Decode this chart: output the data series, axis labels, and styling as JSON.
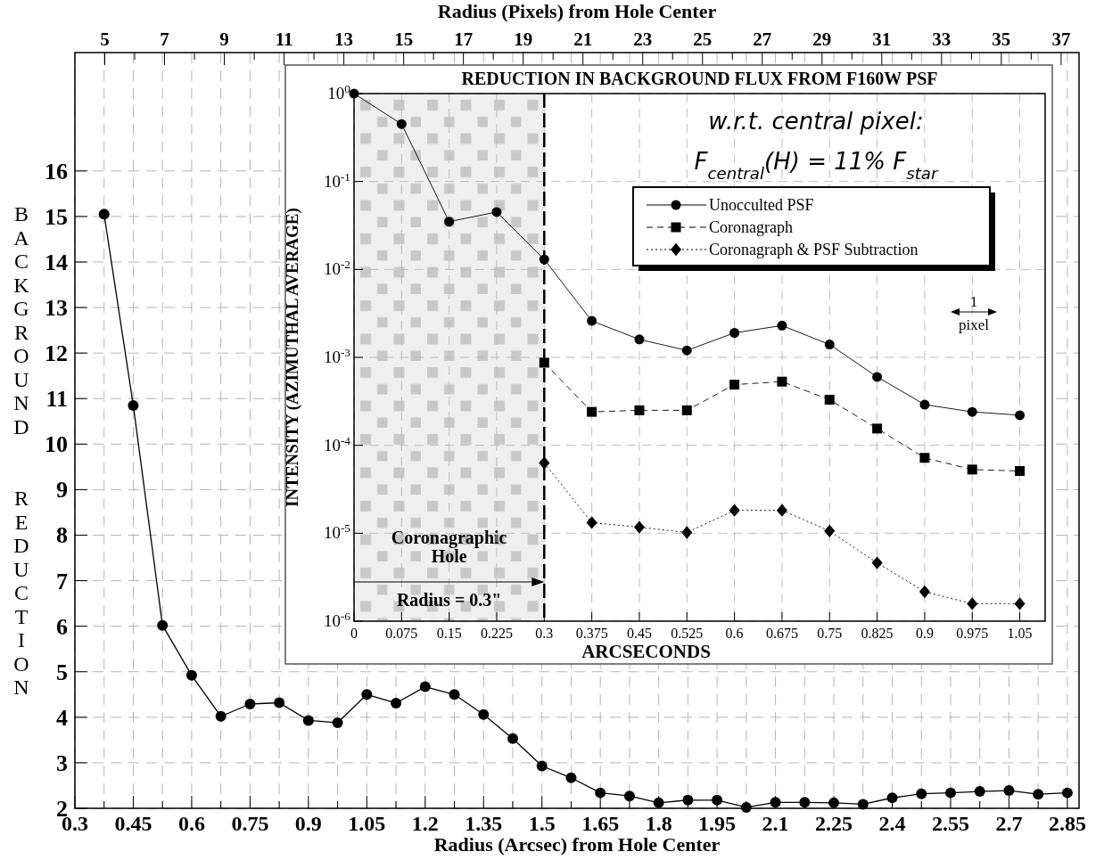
{
  "chart_data": [
    {
      "type": "line",
      "xlabel": "Radius (Arcsec) from Hole Center",
      "x2label": "Radius (Pixels) from Hole Center",
      "ylabel": "BACKGROUND REDUCTION",
      "xlim": [
        0.3,
        2.88
      ],
      "ylim": [
        2,
        18.6
      ],
      "x2lim": [
        4.0,
        37.6
      ],
      "xticks": [
        0.3,
        {
          "value": 0.375,
          "label": null
        },
        0.45,
        {
          "value": 0.525,
          "label": null
        },
        0.6,
        {
          "value": 0.675,
          "label": null
        },
        0.75,
        {
          "value": 0.825,
          "label": null
        },
        0.9,
        {
          "value": 0.975,
          "label": null
        },
        1.05,
        {
          "value": 1.125,
          "label": null
        },
        1.2,
        {
          "value": 1.275,
          "label": null
        },
        1.35,
        {
          "value": 1.425,
          "label": null
        },
        1.5,
        {
          "value": 1.575,
          "label": null
        },
        1.65,
        {
          "value": 1.725,
          "label": null
        },
        1.8,
        {
          "value": 1.875,
          "label": null
        },
        1.95,
        {
          "value": 2.025,
          "label": null
        },
        2.1,
        {
          "value": 2.175,
          "label": null
        },
        2.25,
        {
          "value": 2.325,
          "label": null
        },
        2.4,
        {
          "value": 2.475,
          "label": null
        },
        2.55,
        {
          "value": 2.625,
          "label": null
        },
        2.7,
        {
          "value": 2.775,
          "label": null
        },
        2.85
      ],
      "x2ticks": [
        5,
        {
          "value": 6,
          "label": null
        },
        7,
        {
          "value": 8,
          "label": null
        },
        9,
        {
          "value": 10,
          "label": null
        },
        11,
        {
          "value": 12,
          "label": null
        },
        13,
        {
          "value": 14,
          "label": null
        },
        15,
        {
          "value": 16,
          "label": null
        },
        17,
        {
          "value": 18,
          "label": null
        },
        19,
        {
          "value": 20,
          "label": null
        },
        21,
        {
          "value": 22,
          "label": null
        },
        23,
        {
          "value": 24,
          "label": null
        },
        25,
        {
          "value": 26,
          "label": null
        },
        27,
        {
          "value": 28,
          "label": null
        },
        29,
        {
          "value": 30,
          "label": null
        },
        31,
        {
          "value": 32,
          "label": null
        },
        33,
        {
          "value": 34,
          "label": null
        },
        35,
        {
          "value": 36,
          "label": null
        },
        37
      ],
      "yticks": [
        2,
        3,
        4,
        5,
        6,
        7,
        8,
        9,
        10,
        11,
        12,
        13,
        14,
        15,
        16
      ],
      "grid": true,
      "marker": "circle",
      "line_style": "solid",
      "series": [
        {
          "color": "#000000",
          "x": [
            0.375,
            0.45,
            0.525,
            0.6,
            0.675,
            0.75,
            0.825,
            0.9,
            0.975,
            1.05,
            1.125,
            1.2,
            1.275,
            1.35,
            1.425,
            1.5,
            1.575,
            1.65,
            1.725,
            1.8,
            1.875,
            1.95,
            2.025,
            2.1,
            2.175,
            2.25,
            2.325,
            2.4,
            2.475,
            2.55,
            2.625,
            2.7,
            2.775,
            2.85
          ],
          "values": [
            15.05,
            10.85,
            6.02,
            4.92,
            4.02,
            4.29,
            4.32,
            3.93,
            3.88,
            4.5,
            4.31,
            4.67,
            4.5,
            4.06,
            3.53,
            2.93,
            2.67,
            2.34,
            2.27,
            2.12,
            2.18,
            2.18,
            2.02,
            2.13,
            2.13,
            2.12,
            2.09,
            2.23,
            2.32,
            2.34,
            2.37,
            2.39,
            2.31,
            2.34
          ]
        }
      ]
    },
    {
      "type": "line",
      "title": "REDUCTION IN BACKGROUND FLUX FROM F160W PSF",
      "xlabel": "ARCSECONDS",
      "ylabel": "INTENSITY (AZIMUTHAL AVERAGE)",
      "log": "y",
      "xlim": [
        0,
        1.09
      ],
      "ylim": [
        1e-06,
        1
      ],
      "xticks": [
        0,
        0.075,
        0.15,
        0.225,
        0.3,
        0.375,
        0.45,
        0.525,
        0.6,
        0.675,
        0.75,
        0.825,
        0.9,
        0.975,
        1.05
      ],
      "yticks": [
        {
          "value": 1,
          "label": "10$^{0}$"
        },
        {
          "value": 0.1,
          "label": "10$^{-1}$"
        },
        {
          "value": 0.01,
          "label": "10$^{-2}$"
        },
        {
          "value": 0.001,
          "label": "10$^{-3}$"
        },
        {
          "value": 0.0001,
          "label": "10$^{-4}$"
        },
        {
          "value": 1e-05,
          "label": "10$^{-5}$"
        },
        {
          "value": 1e-06,
          "label": "10$^{-6}$"
        }
      ],
      "grid": true,
      "legend": "top right",
      "bands": [
        {
          "axis": "x",
          "from": 0,
          "to": 0.3,
          "label": "Coronagraphic Hole",
          "color": "#efefef"
        }
      ],
      "ref_lines": [
        {
          "axis": "x",
          "value": 0.3,
          "label": "Radius = 0.3\"",
          "line_style": "dashed",
          "color": "#000000"
        }
      ],
      "annotations": [
        "w.r.t. central pixel:",
        "F$_{central}$(H) = 11% F$_{star}$",
        "1 pixel"
      ],
      "series": [
        {
          "name": "Unocculted PSF",
          "color": "#000000",
          "marker": "circle",
          "line_style": "solid",
          "x": [
            0,
            0.075,
            0.15,
            0.225,
            0.3,
            0.375,
            0.45,
            0.525,
            0.6,
            0.675,
            0.75,
            0.825,
            0.9,
            0.975,
            1.05
          ],
          "values": [
            1.0,
            0.45,
            0.035,
            0.045,
            0.013,
            0.0026,
            0.0016,
            0.0012,
            0.0019,
            0.0023,
            0.0014,
            0.0006,
            0.00029,
            0.00024,
            0.00022
          ]
        },
        {
          "name": "Coronagraph",
          "color": "#000000",
          "marker": "square",
          "line_style": "dashed",
          "x": [
            0.3,
            0.375,
            0.45,
            0.525,
            0.6,
            0.675,
            0.75,
            0.825,
            0.9,
            0.975,
            1.05
          ],
          "values": [
            0.00087,
            0.00024,
            0.00025,
            0.00025,
            0.00049,
            0.00053,
            0.00033,
            0.000155,
            7.2e-05,
            5.3e-05,
            5.1e-05
          ]
        },
        {
          "name": "Coronagraph & PSF Subtraction",
          "color": "#000000",
          "marker": "diamond",
          "line_style": "dotted",
          "x": [
            0.3,
            0.375,
            0.45,
            0.525,
            0.6,
            0.675,
            0.75,
            0.825,
            0.9,
            0.975,
            1.05
          ],
          "values": [
            6.3e-05,
            1.32e-05,
            1.17e-05,
            1.02e-05,
            1.82e-05,
            1.82e-05,
            1.06e-05,
            4.6e-06,
            2.16e-06,
            1.58e-06,
            1.58e-06
          ]
        }
      ]
    }
  ]
}
